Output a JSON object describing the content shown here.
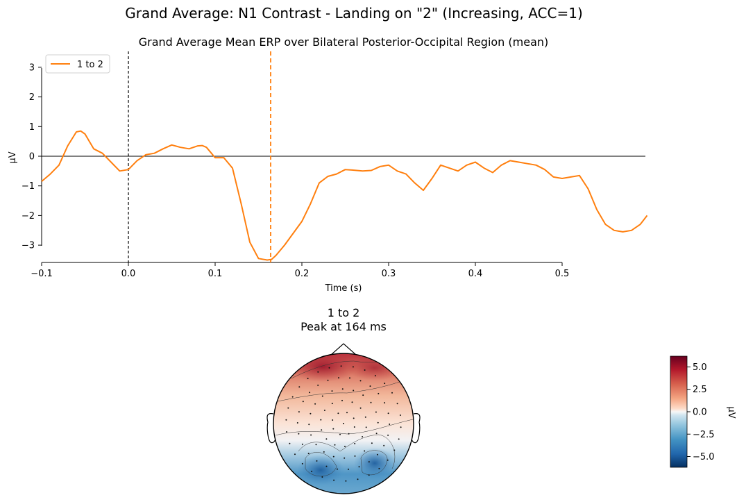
{
  "figure": {
    "suptitle": "Grand Average: N1 Contrast - Landing on \"2\" (Increasing, ACC=1)"
  },
  "chart_data": [
    {
      "type": "line",
      "title": "Grand Average Mean ERP over Bilateral Posterior-Occipital Region (mean)",
      "xlabel": "Time (s)",
      "ylabel": "µV",
      "xlim": [
        -0.1,
        0.598
      ],
      "ylim": [
        -3.5,
        3.5
      ],
      "x_ticks": [
        -0.1,
        0.0,
        0.1,
        0.2,
        0.3,
        0.4,
        0.5
      ],
      "x_tick_labels": [
        "−0.1",
        "0.0",
        "0.1",
        "0.2",
        "0.3",
        "0.4",
        "0.5"
      ],
      "y_ticks": [
        -3,
        -2,
        -1,
        0,
        1,
        2,
        3
      ],
      "y_tick_labels": [
        "−3",
        "−2",
        "−1",
        "0",
        "1",
        "2",
        "3"
      ],
      "legend": {
        "position": "top-left",
        "entries": [
          "1 to 2"
        ]
      },
      "reference_lines": {
        "zero_time": 0.0,
        "peak_time": 0.164,
        "baseline_y": 0
      },
      "series": [
        {
          "name": "1 to 2",
          "color": "#ff7f0e",
          "x": [
            -0.1,
            -0.09,
            -0.08,
            -0.07,
            -0.06,
            -0.055,
            -0.05,
            -0.04,
            -0.03,
            -0.02,
            -0.01,
            0.0,
            0.01,
            0.02,
            0.03,
            0.04,
            0.05,
            0.06,
            0.07,
            0.08,
            0.085,
            0.09,
            0.1,
            0.11,
            0.12,
            0.13,
            0.14,
            0.15,
            0.16,
            0.165,
            0.17,
            0.18,
            0.19,
            0.2,
            0.21,
            0.22,
            0.23,
            0.24,
            0.25,
            0.26,
            0.27,
            0.28,
            0.29,
            0.3,
            0.31,
            0.32,
            0.33,
            0.34,
            0.35,
            0.36,
            0.37,
            0.38,
            0.39,
            0.4,
            0.41,
            0.42,
            0.43,
            0.44,
            0.45,
            0.46,
            0.47,
            0.48,
            0.49,
            0.5,
            0.51,
            0.52,
            0.53,
            0.54,
            0.55,
            0.56,
            0.57,
            0.58,
            0.59,
            0.598
          ],
          "y": [
            -0.85,
            -0.6,
            -0.3,
            0.35,
            0.82,
            0.85,
            0.75,
            0.25,
            0.1,
            -0.2,
            -0.5,
            -0.45,
            -0.15,
            0.05,
            0.1,
            0.25,
            0.38,
            0.3,
            0.25,
            0.35,
            0.36,
            0.3,
            -0.05,
            -0.05,
            -0.4,
            -1.6,
            -2.9,
            -3.45,
            -3.5,
            -3.48,
            -3.35,
            -3.0,
            -2.6,
            -2.2,
            -1.6,
            -0.9,
            -0.68,
            -0.6,
            -0.45,
            -0.47,
            -0.5,
            -0.48,
            -0.35,
            -0.3,
            -0.5,
            -0.6,
            -0.9,
            -1.15,
            -0.75,
            -0.3,
            -0.4,
            -0.5,
            -0.3,
            -0.2,
            -0.4,
            -0.55,
            -0.3,
            -0.15,
            -0.2,
            -0.25,
            -0.3,
            -0.45,
            -0.7,
            -0.75,
            -0.7,
            -0.65,
            -1.1,
            -1.8,
            -2.3,
            -2.5,
            -2.55,
            -2.5,
            -2.3,
            -2.0
          ]
        }
      ]
    },
    {
      "type": "heatmap",
      "title_line1": "1 to 2",
      "title_line2": "Peak at 164 ms",
      "title_color": "#ff7f0e",
      "colorbar": {
        "label": "µV",
        "range": [
          -6.2,
          6.2
        ],
        "ticks": [
          5.0,
          2.5,
          0.0,
          -2.5,
          -5.0
        ],
        "tick_labels": [
          "5.0",
          "2.5",
          "0.0",
          "−2.5",
          "−5.0"
        ],
        "colormap": "RdBu_r"
      },
      "topomap_summary": "frontal positive, posterior-occipital negative"
    }
  ]
}
